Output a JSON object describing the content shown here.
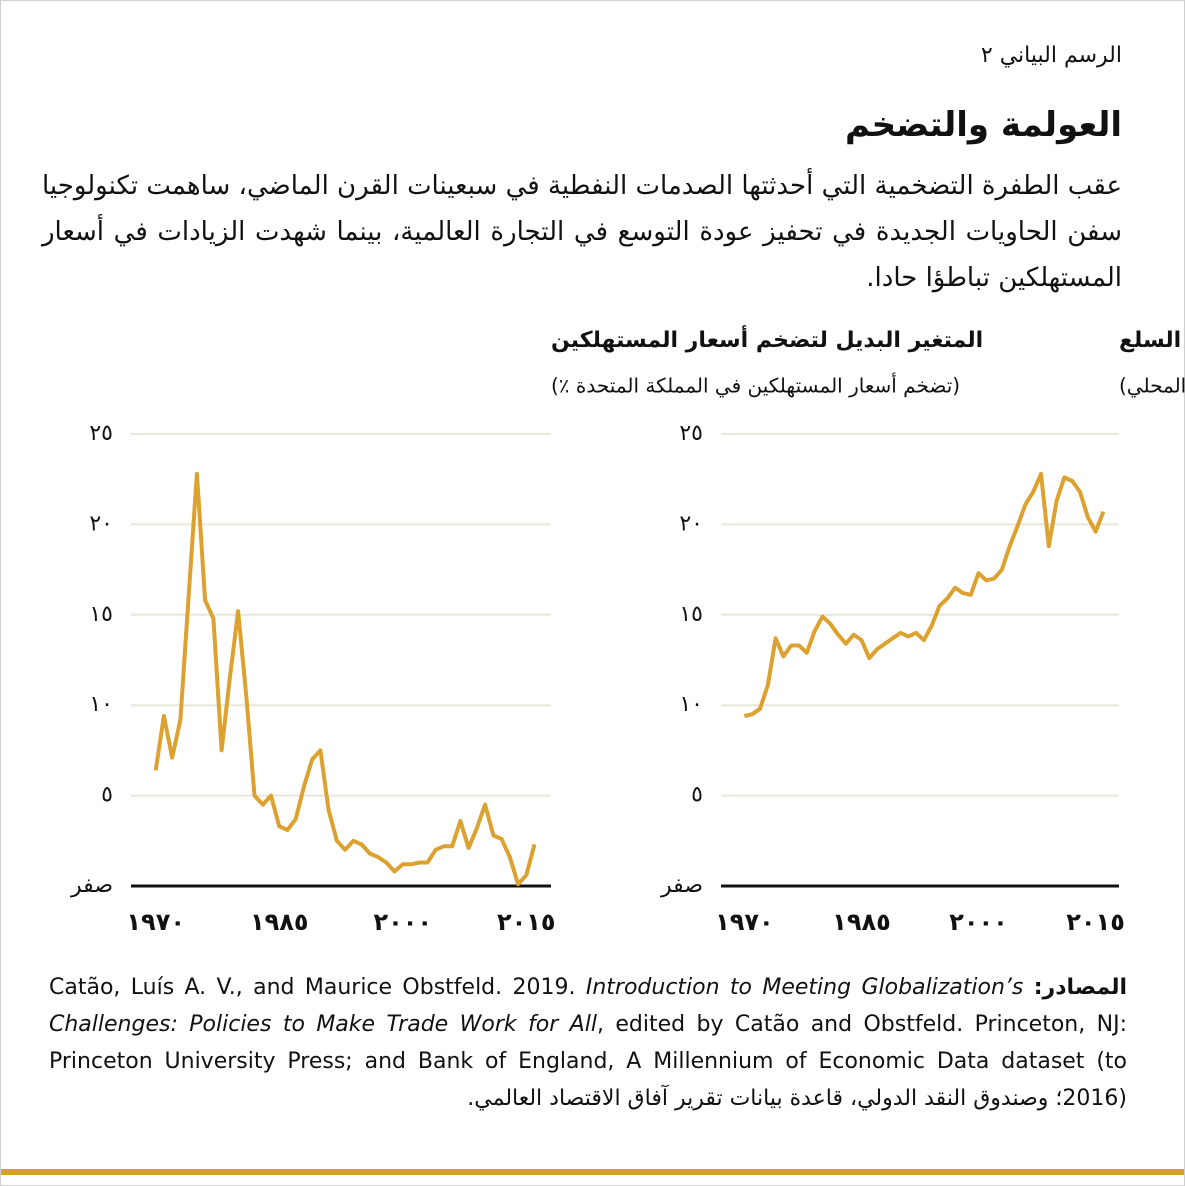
{
  "header": {
    "label": "الرسم البياني ٢",
    "title": "العولمة والتضخم",
    "subtitle": "عقب الطفرة التضخمية التي أحدثتها الصدمات النفطية في سبعينات القرن الماضي، ساهمت تكنولوجيا سفن الحاويات الجديدة في تحفيز عودة التوسع في التجارة العالمية، بينما شهدت الزيادات في أسعار المستهلكين تباطؤا حادا."
  },
  "chart_data": [
    {
      "type": "line",
      "title": "التجارة العالمية في السلع",
      "subtitle": "(كنسبة من إجمالي الناتج المحلي)",
      "color": "#dca12f",
      "x": [
        1970,
        1971,
        1972,
        1973,
        1974,
        1975,
        1976,
        1977,
        1978,
        1979,
        1980,
        1981,
        1982,
        1983,
        1984,
        1985,
        1986,
        1987,
        1988,
        1989,
        1990,
        1991,
        1992,
        1993,
        1994,
        1995,
        1996,
        1997,
        1998,
        1999,
        2000,
        2001,
        2002,
        2003,
        2004,
        2005,
        2006,
        2007,
        2008,
        2009,
        2010,
        2011,
        2012,
        2013,
        2014,
        2015,
        2016
      ],
      "values": [
        9.4,
        9.5,
        9.8,
        11.1,
        13.7,
        12.7,
        13.3,
        13.3,
        12.9,
        14.1,
        14.9,
        14.5,
        13.9,
        13.4,
        13.9,
        13.6,
        12.6,
        13.1,
        13.4,
        13.7,
        14.0,
        13.8,
        14.0,
        13.6,
        14.4,
        15.5,
        15.9,
        16.5,
        16.2,
        16.1,
        17.3,
        16.9,
        17.0,
        17.5,
        18.8,
        19.9,
        21.1,
        21.8,
        22.8,
        18.8,
        21.3,
        22.6,
        22.4,
        21.8,
        20.4,
        19.6,
        20.7
      ],
      "xlim": [
        1967,
        2018
      ],
      "xticks": [
        {
          "value": 1970,
          "label": "١٩٧٠"
        },
        {
          "value": 1985,
          "label": "١٩٨٥"
        },
        {
          "value": 2000,
          "label": "٢٠٠٠"
        },
        {
          "value": 2015,
          "label": "٢٠١٥"
        }
      ],
      "ylim": [
        0,
        25
      ],
      "yticks": [
        {
          "value": 0,
          "label": "صفر"
        },
        {
          "value": 5,
          "label": "٥"
        },
        {
          "value": 10,
          "label": "١٠"
        },
        {
          "value": 15,
          "label": "١٥"
        },
        {
          "value": 20,
          "label": "٢٠"
        },
        {
          "value": 25,
          "label": "٢٥"
        }
      ],
      "grid": true
    },
    {
      "type": "line",
      "title": "المتغير البديل لتضخم أسعار المستهلكين",
      "subtitle": "(تضخم أسعار المستهلكين في المملكة المتحدة ٪)",
      "color": "#dca12f",
      "x": [
        1970,
        1971,
        1972,
        1973,
        1974,
        1975,
        1976,
        1977,
        1978,
        1979,
        1980,
        1981,
        1982,
        1983,
        1984,
        1985,
        1986,
        1987,
        1988,
        1989,
        1990,
        1991,
        1992,
        1993,
        1994,
        1995,
        1996,
        1997,
        1998,
        1999,
        2000,
        2001,
        2002,
        2003,
        2004,
        2005,
        2006,
        2007,
        2008,
        2009,
        2010,
        2011,
        2012,
        2013,
        2014,
        2015,
        2016
      ],
      "values": [
        6.4,
        9.4,
        7.1,
        9.2,
        16.0,
        22.8,
        15.8,
        14.8,
        7.5,
        11.5,
        15.2,
        10.5,
        5.0,
        4.5,
        5.0,
        3.3,
        3.1,
        3.7,
        5.5,
        7.0,
        7.5,
        4.2,
        2.5,
        2.0,
        2.5,
        2.3,
        1.8,
        1.6,
        1.3,
        0.8,
        1.2,
        1.2,
        1.3,
        1.3,
        2.0,
        2.2,
        2.2,
        3.6,
        2.1,
        3.2,
        4.5,
        2.8,
        2.6,
        1.6,
        0.1,
        0.6,
        2.3
      ],
      "xlim": [
        1967,
        2018
      ],
      "xticks": [
        {
          "value": 1970,
          "label": "١٩٧٠"
        },
        {
          "value": 1985,
          "label": "١٩٨٥"
        },
        {
          "value": 2000,
          "label": "٢٠٠٠"
        },
        {
          "value": 2015,
          "label": "٢٠١٥"
        }
      ],
      "ylim": [
        0,
        25
      ],
      "yticks": [
        {
          "value": 0,
          "label": "صفر"
        },
        {
          "value": 5,
          "label": "٥"
        },
        {
          "value": 10,
          "label": "١٠"
        },
        {
          "value": 15,
          "label": "١٥"
        },
        {
          "value": 20,
          "label": "٢٠"
        },
        {
          "value": 25,
          "label": "٢٥"
        }
      ],
      "grid": true
    }
  ],
  "source": {
    "label": "المصادر:",
    "text1": "Catão, Luís A. V., and Maurice Obstfeld. 2019. ",
    "italic": "Introduction to Meeting Globalization’s Challenges: Policies to Make Trade Work for All",
    "text2": ", edited by Catão and Obstfeld. Princeton, NJ: Princeton University Press; and Bank of England, A Millennium of Economic Data dataset (to 2016)",
    "text3": "؛ وصندوق النقد الدولي، قاعدة بيانات تقرير آفاق الاقتصاد العالمي."
  }
}
